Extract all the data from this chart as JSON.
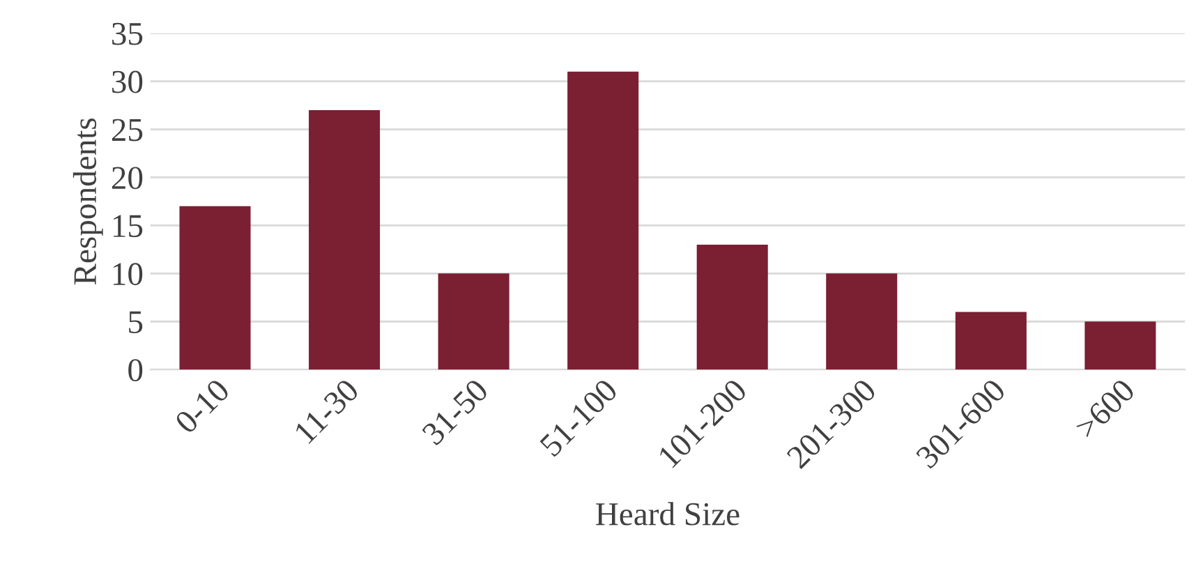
{
  "chart_data": {
    "type": "bar",
    "xlabel": "Heard Size",
    "ylabel": "Respondents",
    "categories": [
      "0-10",
      "11-30",
      "31-50",
      "51-100",
      "101-200",
      "201-300",
      "301-600",
      ">600"
    ],
    "values": [
      17,
      27,
      10,
      31,
      13,
      10,
      6,
      5
    ],
    "color": "#7b1f32",
    "ylim": [
      0,
      35
    ],
    "yticks": [
      0,
      5,
      10,
      15,
      20,
      25,
      30,
      35
    ],
    "grid": "y",
    "legend": false
  }
}
